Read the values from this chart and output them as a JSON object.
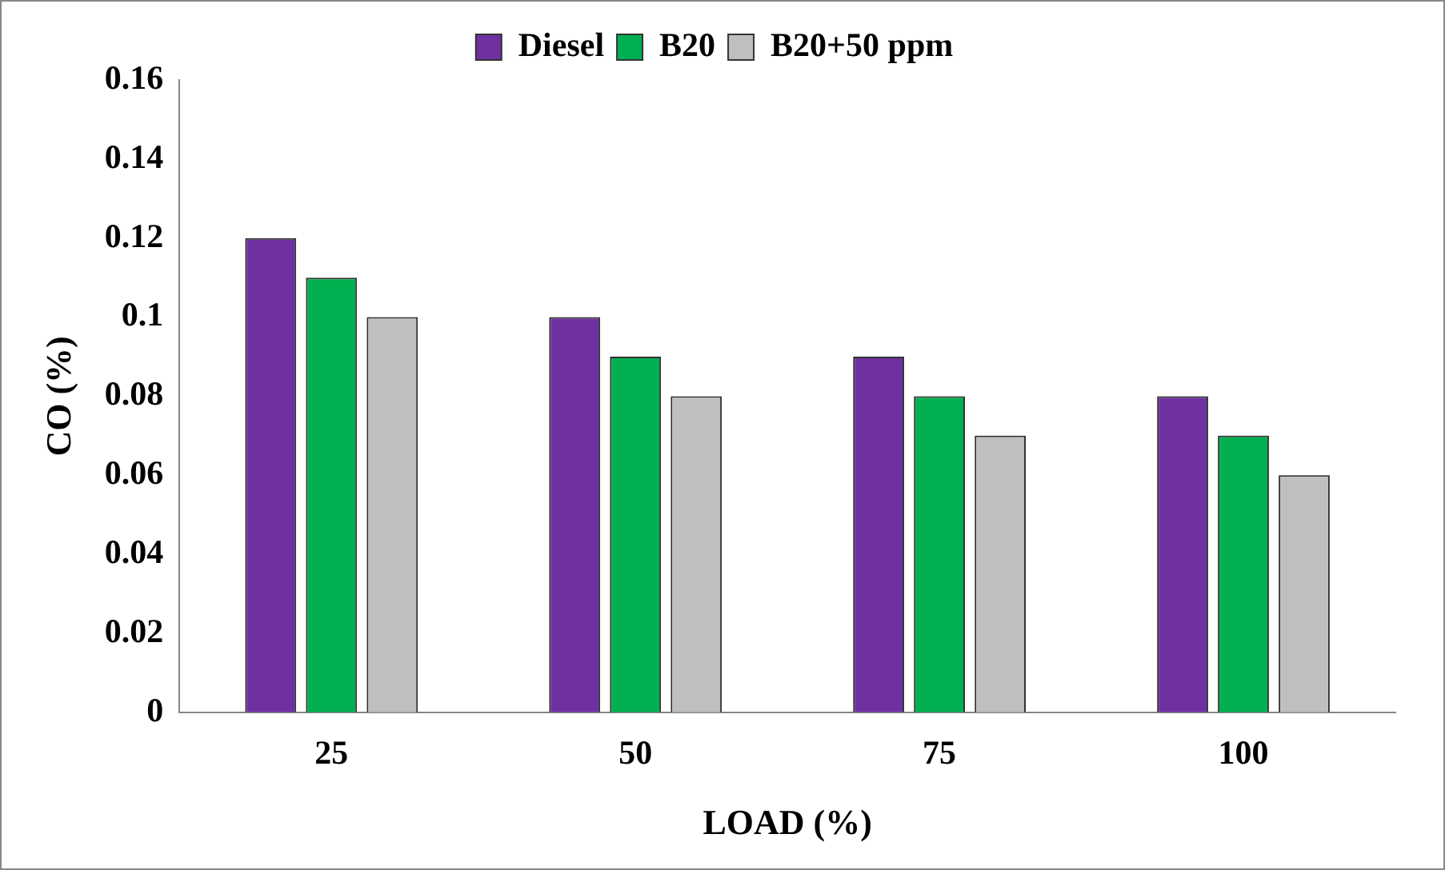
{
  "chart_data": {
    "type": "bar",
    "xlabel": "LOAD (%)",
    "ylabel": "CO (%)",
    "categories": [
      "25",
      "50",
      "75",
      "100"
    ],
    "series": [
      {
        "name": "Diesel",
        "color": "#7030a0",
        "values": [
          0.12,
          0.1,
          0.09,
          0.08
        ]
      },
      {
        "name": "B20",
        "color": "#00b050",
        "values": [
          0.11,
          0.09,
          0.08,
          0.07
        ]
      },
      {
        "name": "B20+50 ppm",
        "color": "#bfbfbf",
        "values": [
          0.1,
          0.08,
          0.07,
          0.06
        ]
      }
    ],
    "ylim": [
      0,
      0.16
    ],
    "yticks": [
      0,
      0.02,
      0.04,
      0.06,
      0.08,
      0.1,
      0.12,
      0.14,
      0.16
    ],
    "legend": "top",
    "grid": false
  }
}
